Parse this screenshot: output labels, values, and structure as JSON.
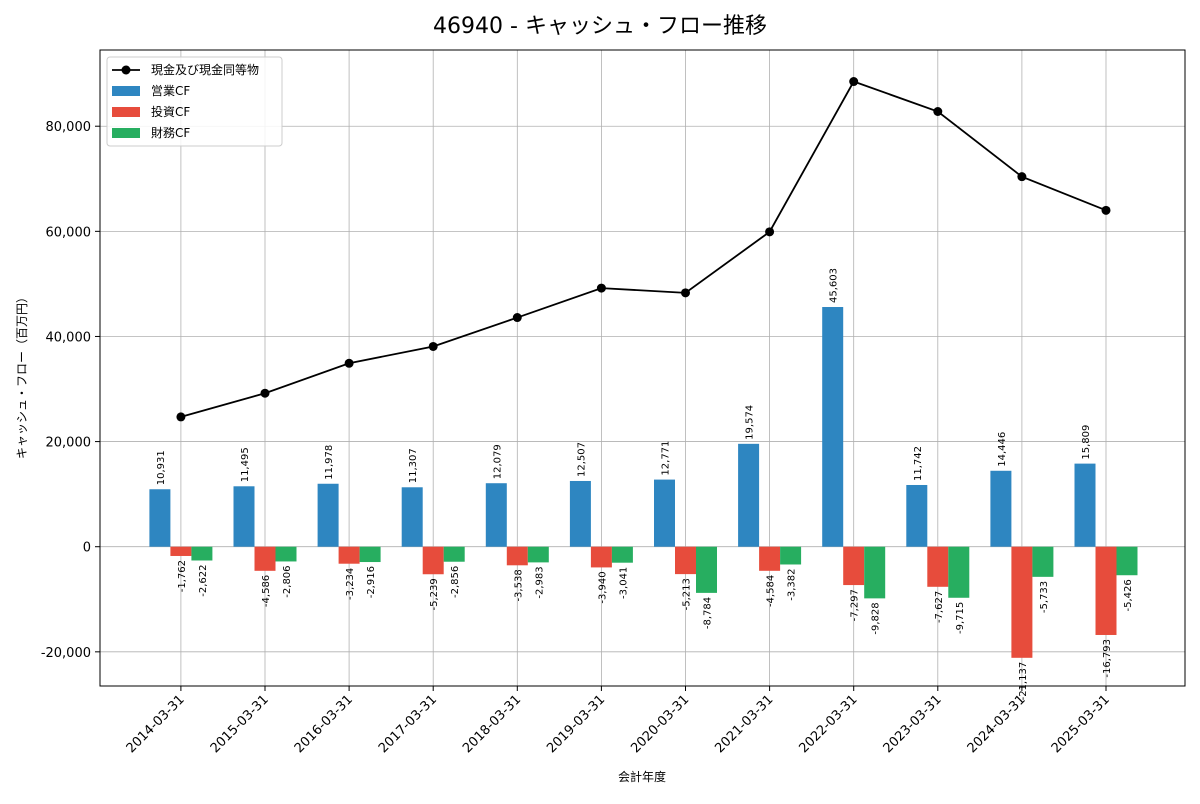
{
  "chart_data": {
    "type": "bar",
    "title": "46940 - キャッシュ・フロー推移",
    "xlabel": "会計年度",
    "ylabel": "キャッシュ・フロー（百万円）",
    "ylim": [
      -26500,
      94500
    ],
    "yticks": [
      -20000,
      0,
      20000,
      40000,
      60000,
      80000
    ],
    "ytick_labels": [
      "-20,000",
      "0",
      "20,000",
      "40,000",
      "60,000",
      "80,000"
    ],
    "grid": true,
    "legend_position": "top-left",
    "categories": [
      "2014-03-31",
      "2015-03-31",
      "2016-03-31",
      "2017-03-31",
      "2018-03-31",
      "2019-03-31",
      "2020-03-31",
      "2021-03-31",
      "2022-03-31",
      "2023-03-31",
      "2024-03-31",
      "2025-03-31"
    ],
    "line_series": {
      "name": "現金及び現金同等物",
      "color": "#000000",
      "values": [
        24700,
        29200,
        34900,
        38100,
        43600,
        49200,
        48300,
        59900,
        88500,
        82800,
        70400,
        64000
      ]
    },
    "series": [
      {
        "name": "営業CF",
        "color": "#2e86c1",
        "values": [
          10931,
          11495,
          11978,
          11307,
          12079,
          12507,
          12771,
          19574,
          45603,
          11742,
          14446,
          15809
        ],
        "labels": [
          "10,931",
          "11,495",
          "11,978",
          "11,307",
          "12,079",
          "12,507",
          "12,771",
          "19,574",
          "45,603",
          "11,742",
          "14,446",
          "15,809"
        ]
      },
      {
        "name": "投資CF",
        "color": "#e74c3c",
        "values": [
          -1762,
          -4586,
          -3234,
          -5239,
          -3538,
          -3940,
          -5213,
          -4584,
          -7297,
          -7627,
          -21137,
          -16793
        ],
        "labels": [
          "-1,762",
          "-4,586",
          "-3,234",
          "-5,239",
          "-3,538",
          "-3,940",
          "-5,213",
          "-4,584",
          "-7,297",
          "-7,627",
          "-21,137",
          "-16,793"
        ]
      },
      {
        "name": "財務CF",
        "color": "#27ae60",
        "values": [
          -2622,
          -2806,
          -2916,
          -2856,
          -2983,
          -3041,
          -8784,
          -3382,
          -9828,
          -9715,
          -5733,
          -5426
        ],
        "labels": [
          "-2,622",
          "-2,806",
          "-2,916",
          "-2,856",
          "-2,983",
          "-3,041",
          "-8,784",
          "-3,382",
          "-9,828",
          "-9,715",
          "-5,733",
          "-5,426"
        ]
      }
    ]
  }
}
